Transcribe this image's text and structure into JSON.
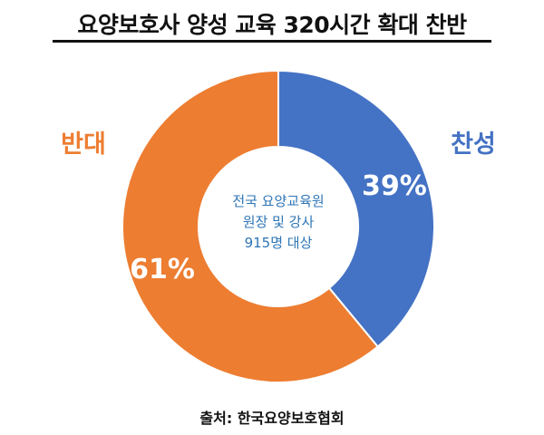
{
  "title": "요양보호사 양성 교육 320시간 확대 찬반",
  "source": "출처: 한국요양보호협회",
  "center_text": [
    "전국 요양교육원",
    "원장 및 강사",
    "915명 대상"
  ],
  "colors": {
    "찬성": "#4472c4",
    "반대": "#ed7d31",
    "center_text": "#2e75b6",
    "title": "#111111"
  },
  "chart_data": {
    "type": "pie",
    "variant": "donut",
    "title": "요양보호사 양성 교육 320시간 확대 찬반",
    "categories": [
      "찬성",
      "반대"
    ],
    "values": [
      39,
      61
    ],
    "value_labels": [
      "39%",
      "61%"
    ],
    "colors": [
      "#4472c4",
      "#ed7d31"
    ],
    "start_angle": "12 o'clock, clockwise"
  }
}
